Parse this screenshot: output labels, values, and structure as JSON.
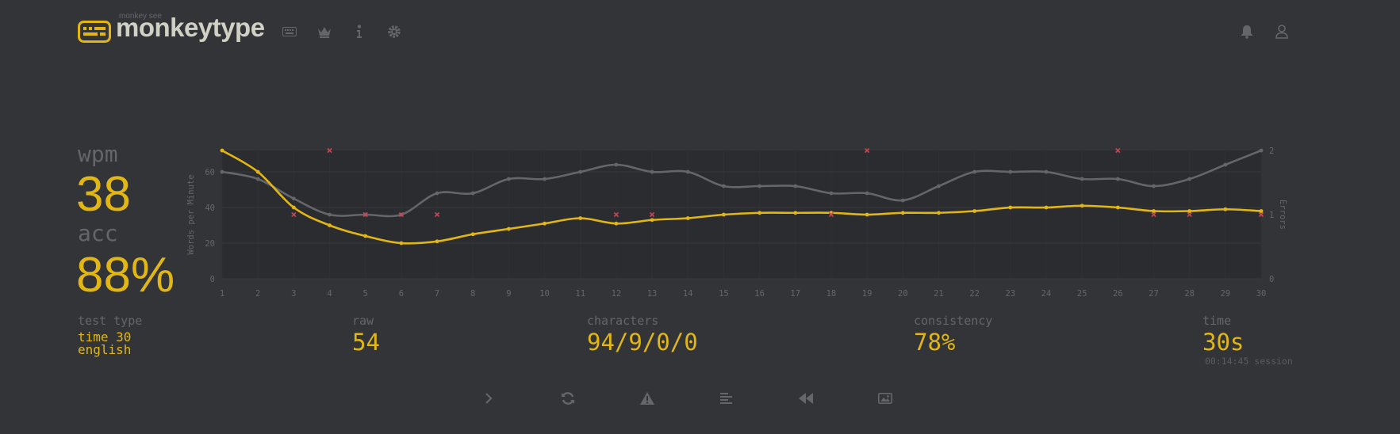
{
  "header": {
    "logo_top": "monkey see",
    "logo_text": "monkeytype",
    "nav_icons": [
      "keyboard-icon",
      "crown-icon",
      "info-icon",
      "gear-icon"
    ],
    "right_icons": [
      "bell-icon",
      "user-icon"
    ]
  },
  "stats": {
    "wpm_label": "wpm",
    "wpm_value": "38",
    "acc_label": "acc",
    "acc_value": "88%",
    "test_type_label": "test type",
    "test_type_line1": "time 30",
    "test_type_line2": "english",
    "raw_label": "raw",
    "raw_value": "54",
    "characters_label": "characters",
    "characters_value": "94/9/0/0",
    "consistency_label": "consistency",
    "consistency_value": "78%",
    "time_label": "time",
    "time_value": "30s",
    "session": "00:14:45 session"
  },
  "colors": {
    "background": "#323437",
    "accent": "#e2b714",
    "sub": "#646669",
    "text": "#d1d0c5",
    "error": "#ca4754"
  },
  "chart_data": {
    "type": "line",
    "x": [
      1,
      2,
      3,
      4,
      5,
      6,
      7,
      8,
      9,
      10,
      11,
      12,
      13,
      14,
      15,
      16,
      17,
      18,
      19,
      20,
      21,
      22,
      23,
      24,
      25,
      26,
      27,
      28,
      29,
      30
    ],
    "xlim": [
      1,
      30
    ],
    "ylim": [
      0,
      72
    ],
    "y_ticks": [
      0,
      20,
      40,
      60
    ],
    "ylabel": "Words per Minute",
    "y2label": "Errors",
    "y2lim": [
      0,
      2
    ],
    "y2_ticks": [
      0,
      1,
      2
    ],
    "series": [
      {
        "color": "#e2b714",
        "values": [
          72,
          60,
          40,
          30,
          24,
          20,
          21,
          25,
          28,
          31,
          34,
          31,
          33,
          34,
          36,
          37,
          37,
          37,
          36,
          37,
          37,
          38,
          40,
          40,
          41,
          40,
          38,
          38,
          39,
          38
        ]
      },
      {
        "color": "#646669",
        "values": [
          60,
          56,
          45,
          36,
          36,
          36,
          48,
          48,
          56,
          56,
          60,
          64,
          60,
          60,
          52,
          52,
          52,
          48,
          48,
          44,
          52,
          60,
          60,
          60,
          56,
          56,
          52,
          56,
          64,
          72
        ]
      }
    ],
    "errors": [
      {
        "x": 3,
        "count": 1
      },
      {
        "x": 4,
        "count": 2
      },
      {
        "x": 5,
        "count": 1
      },
      {
        "x": 6,
        "count": 1
      },
      {
        "x": 7,
        "count": 1
      },
      {
        "x": 12,
        "count": 1
      },
      {
        "x": 13,
        "count": 1
      },
      {
        "x": 18,
        "count": 1
      },
      {
        "x": 19,
        "count": 2
      },
      {
        "x": 26,
        "count": 2
      },
      {
        "x": 27,
        "count": 1
      },
      {
        "x": 28,
        "count": 1
      },
      {
        "x": 30,
        "count": 1
      }
    ]
  },
  "bottom_buttons": [
    "next-test",
    "restart",
    "report",
    "word-history",
    "replay",
    "screenshot"
  ]
}
